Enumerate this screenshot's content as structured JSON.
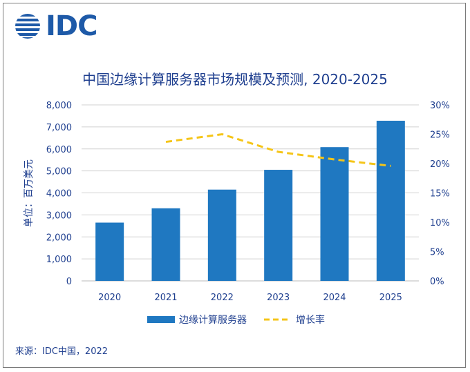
{
  "logo": {
    "text": "IDC"
  },
  "source": "来源：IDC中国，2022",
  "colors": {
    "bar": "#1f78c1",
    "line": "#f5c518",
    "text": "#1f3f8f",
    "grid": "#d0d0d0"
  },
  "chart_data": {
    "type": "bar",
    "title": "中国边缘计算服务器市场规模及预测, 2020-2025",
    "ylabel": "单位：百万美元",
    "categories": [
      "2020",
      "2021",
      "2022",
      "2023",
      "2024",
      "2025"
    ],
    "y_ticks": [
      "0",
      "1,000",
      "2,000",
      "3,000",
      "4,000",
      "5,000",
      "6,000",
      "7,000",
      "8,000"
    ],
    "y2_ticks": [
      "0%",
      "5%",
      "10%",
      "15%",
      "20%",
      "25%",
      "30%"
    ],
    "ylim": [
      0,
      8000
    ],
    "y2lim": [
      0,
      30
    ],
    "series": [
      {
        "name": "边缘计算服务器",
        "type": "bar",
        "values": [
          2650,
          3300,
          4150,
          5050,
          6080,
          7280
        ]
      },
      {
        "name": "增长率",
        "type": "line",
        "axis": "right",
        "values": [
          null,
          23.7,
          25.0,
          22.0,
          20.7,
          19.6
        ]
      }
    ],
    "legend_position": "bottom"
  }
}
